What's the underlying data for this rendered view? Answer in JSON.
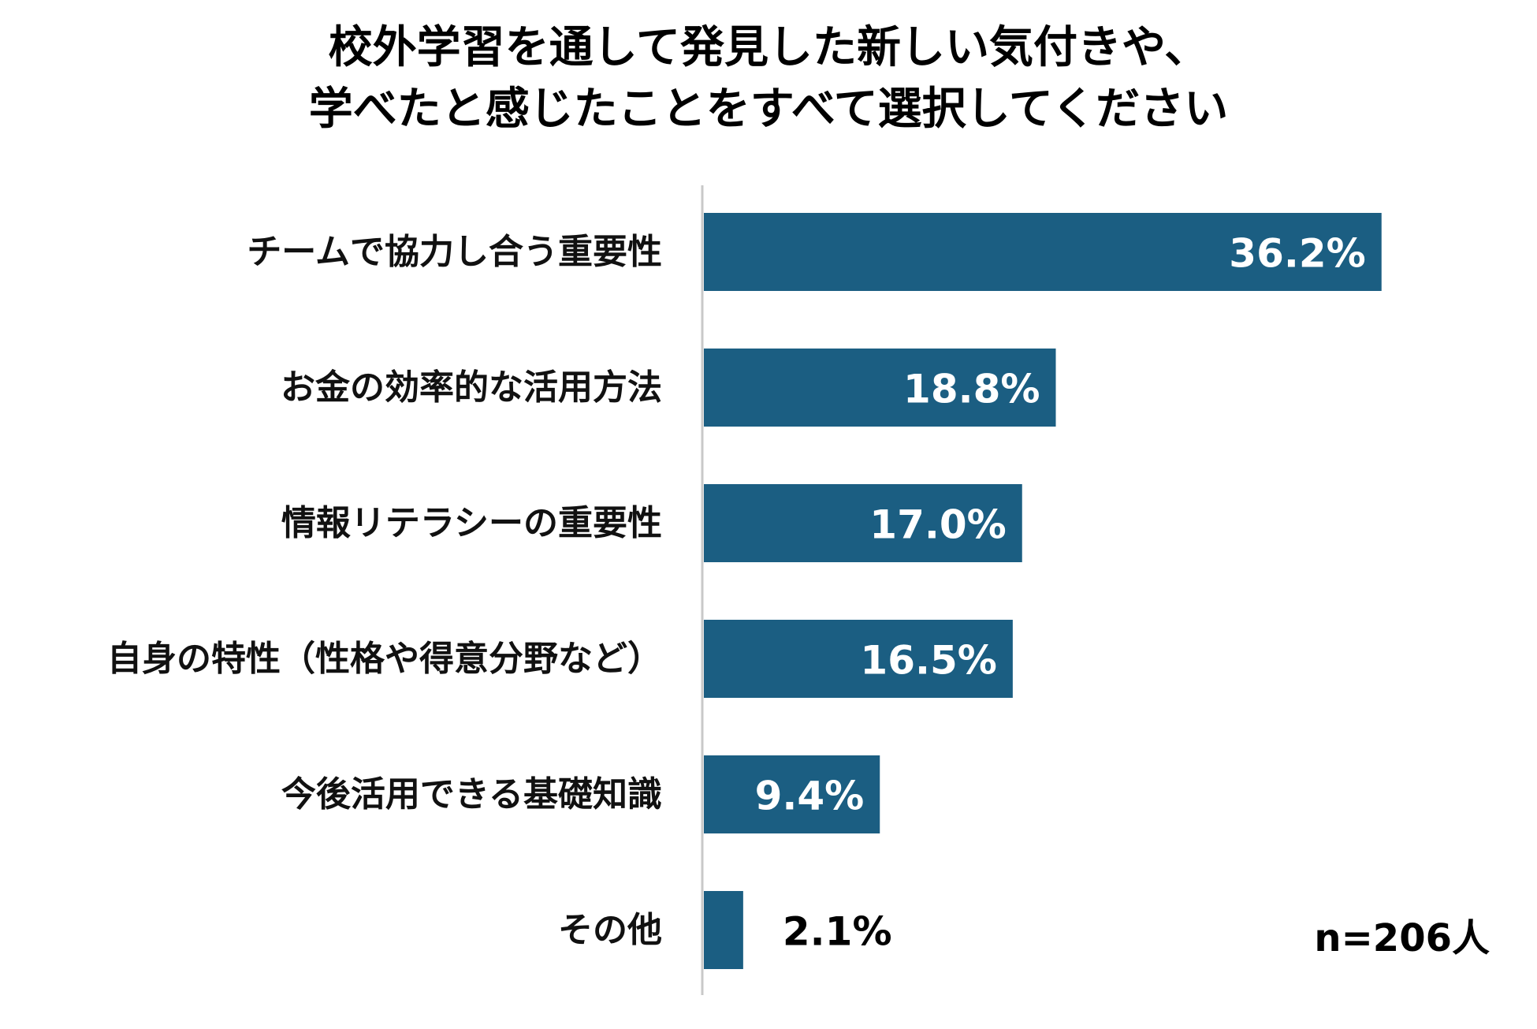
{
  "chart_data": {
    "type": "bar",
    "orientation": "horizontal",
    "title_lines": [
      "校外学習を通して発見した新しい気付きや、",
      "学べたと感じたことをすべて選択してください"
    ],
    "categories": [
      "チームで協力し合う重要性",
      "お金の効率的な活用方法",
      "情報リテラシーの重要性",
      "自身の特性（性格や得意分野など）",
      "今後活用できる基礎知識",
      "その他"
    ],
    "values": [
      36.2,
      18.8,
      17.0,
      16.5,
      9.4,
      2.1
    ],
    "value_labels": [
      "36.2%",
      "18.8%",
      "17.0%",
      "16.5%",
      "9.4%",
      "2.1%"
    ],
    "unit": "%",
    "bar_color": "#1b5e82",
    "label_color_inside": "#ffffff",
    "label_color_outside": "#000000",
    "axis_color": "#c8c8c8",
    "grid": false,
    "note": "n=206人"
  }
}
